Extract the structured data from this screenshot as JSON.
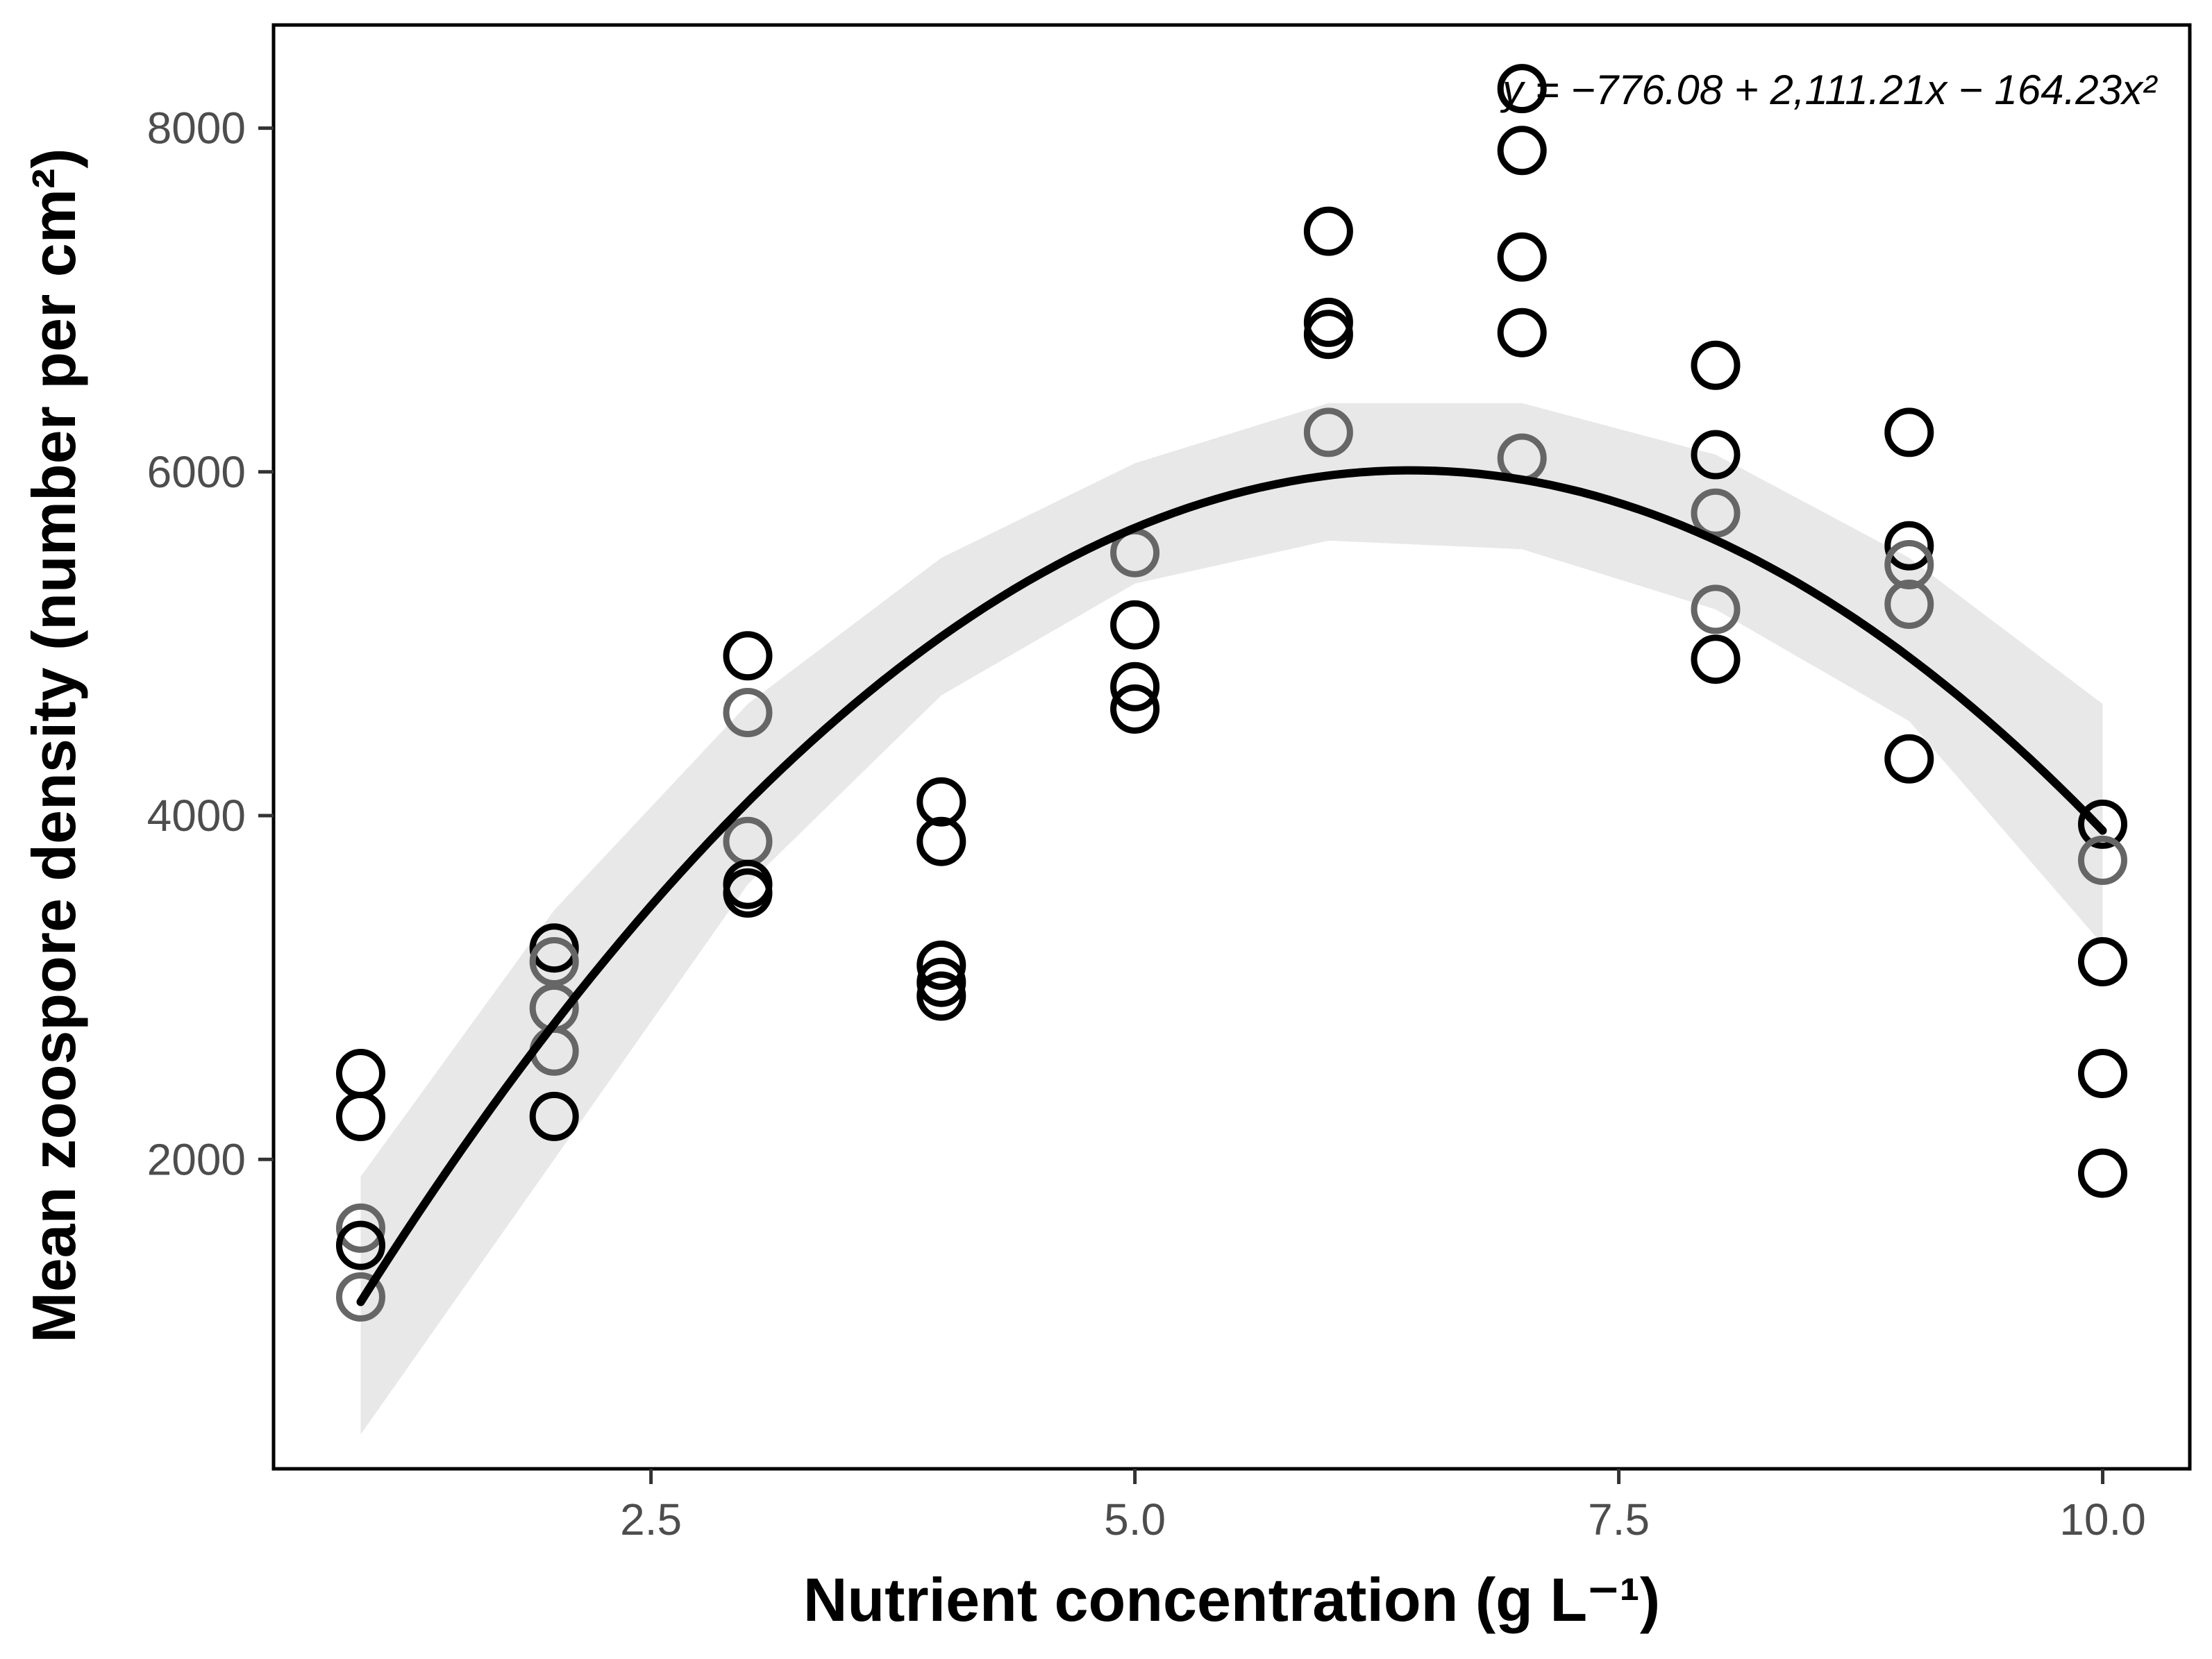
{
  "chart_data": {
    "type": "scatter",
    "title": "",
    "xlabel": "Nutrient concentration (g L⁻¹)",
    "ylabel": "Mean zoospore density (number per cm²)",
    "xlim": [
      0.55,
      10.45
    ],
    "ylim": [
      200,
      8600
    ],
    "xticks": [
      2.5,
      5.0,
      7.5,
      10.0
    ],
    "xtick_labels": [
      "2.5",
      "5.0",
      "7.5",
      "10.0"
    ],
    "yticks": [
      2000,
      4000,
      6000,
      8000
    ],
    "ytick_labels": [
      "2000",
      "4000",
      "6000",
      "8000"
    ],
    "grid": false,
    "equation": "y = −776.08 + 2,111.21x − 164.23x²",
    "fit": {
      "type": "quadratic",
      "coefficients": [
        -776.08,
        2111.21,
        -164.23
      ],
      "x_range": [
        1,
        10
      ],
      "color": "#000000",
      "band_color": "#e8e8e8",
      "band": {
        "x": [
          1,
          2,
          3,
          4,
          5,
          6,
          7,
          8,
          9,
          10
        ],
        "lower": [
          400,
          2000,
          3600,
          4700,
          5350,
          5600,
          5550,
          5200,
          4550,
          3250
        ],
        "upper": [
          1900,
          3450,
          4650,
          5500,
          6050,
          6400,
          6400,
          6100,
          5500,
          4650
        ]
      }
    },
    "series": [
      {
        "name": "observations",
        "colors": {
          "black": "#000000",
          "grey": "#666666"
        },
        "points": [
          {
            "x": 1,
            "y": 2500,
            "c": "black"
          },
          {
            "x": 1,
            "y": 2250,
            "c": "black"
          },
          {
            "x": 1,
            "y": 1600,
            "c": "grey"
          },
          {
            "x": 1,
            "y": 1500,
            "c": "black"
          },
          {
            "x": 1,
            "y": 1200,
            "c": "grey"
          },
          {
            "x": 2,
            "y": 3230,
            "c": "black"
          },
          {
            "x": 2,
            "y": 3150,
            "c": "grey"
          },
          {
            "x": 2,
            "y": 2880,
            "c": "grey"
          },
          {
            "x": 2,
            "y": 2630,
            "c": "grey"
          },
          {
            "x": 2,
            "y": 2250,
            "c": "black"
          },
          {
            "x": 3,
            "y": 4930,
            "c": "black"
          },
          {
            "x": 3,
            "y": 4600,
            "c": "grey"
          },
          {
            "x": 3,
            "y": 3850,
            "c": "grey"
          },
          {
            "x": 3,
            "y": 3600,
            "c": "black"
          },
          {
            "x": 3,
            "y": 3550,
            "c": "black"
          },
          {
            "x": 4,
            "y": 4080,
            "c": "black"
          },
          {
            "x": 4,
            "y": 3850,
            "c": "black"
          },
          {
            "x": 4,
            "y": 3130,
            "c": "black"
          },
          {
            "x": 4,
            "y": 3030,
            "c": "black"
          },
          {
            "x": 4,
            "y": 2950,
            "c": "black"
          },
          {
            "x": 5,
            "y": 5530,
            "c": "grey"
          },
          {
            "x": 5,
            "y": 5110,
            "c": "black"
          },
          {
            "x": 5,
            "y": 4750,
            "c": "black"
          },
          {
            "x": 5,
            "y": 4620,
            "c": "black"
          },
          {
            "x": 6,
            "y": 7400,
            "c": "black"
          },
          {
            "x": 6,
            "y": 6870,
            "c": "black"
          },
          {
            "x": 6,
            "y": 6800,
            "c": "black"
          },
          {
            "x": 6,
            "y": 6230,
            "c": "grey"
          },
          {
            "x": 7,
            "y": 8230,
            "c": "black"
          },
          {
            "x": 7,
            "y": 7870,
            "c": "black"
          },
          {
            "x": 7,
            "y": 7250,
            "c": "black"
          },
          {
            "x": 7,
            "y": 6810,
            "c": "black"
          },
          {
            "x": 7,
            "y": 6080,
            "c": "grey"
          },
          {
            "x": 8,
            "y": 6620,
            "c": "black"
          },
          {
            "x": 8,
            "y": 6100,
            "c": "black"
          },
          {
            "x": 8,
            "y": 5760,
            "c": "grey"
          },
          {
            "x": 8,
            "y": 5200,
            "c": "grey"
          },
          {
            "x": 8,
            "y": 4910,
            "c": "black"
          },
          {
            "x": 9,
            "y": 6230,
            "c": "black"
          },
          {
            "x": 9,
            "y": 5570,
            "c": "black"
          },
          {
            "x": 9,
            "y": 5460,
            "c": "grey"
          },
          {
            "x": 9,
            "y": 5230,
            "c": "grey"
          },
          {
            "x": 9,
            "y": 4330,
            "c": "black"
          },
          {
            "x": 10,
            "y": 3950,
            "c": "black"
          },
          {
            "x": 10,
            "y": 3740,
            "c": "grey"
          },
          {
            "x": 10,
            "y": 3150,
            "c": "black"
          },
          {
            "x": 10,
            "y": 2500,
            "c": "black"
          },
          {
            "x": 10,
            "y": 1920,
            "c": "black"
          }
        ]
      }
    ]
  }
}
